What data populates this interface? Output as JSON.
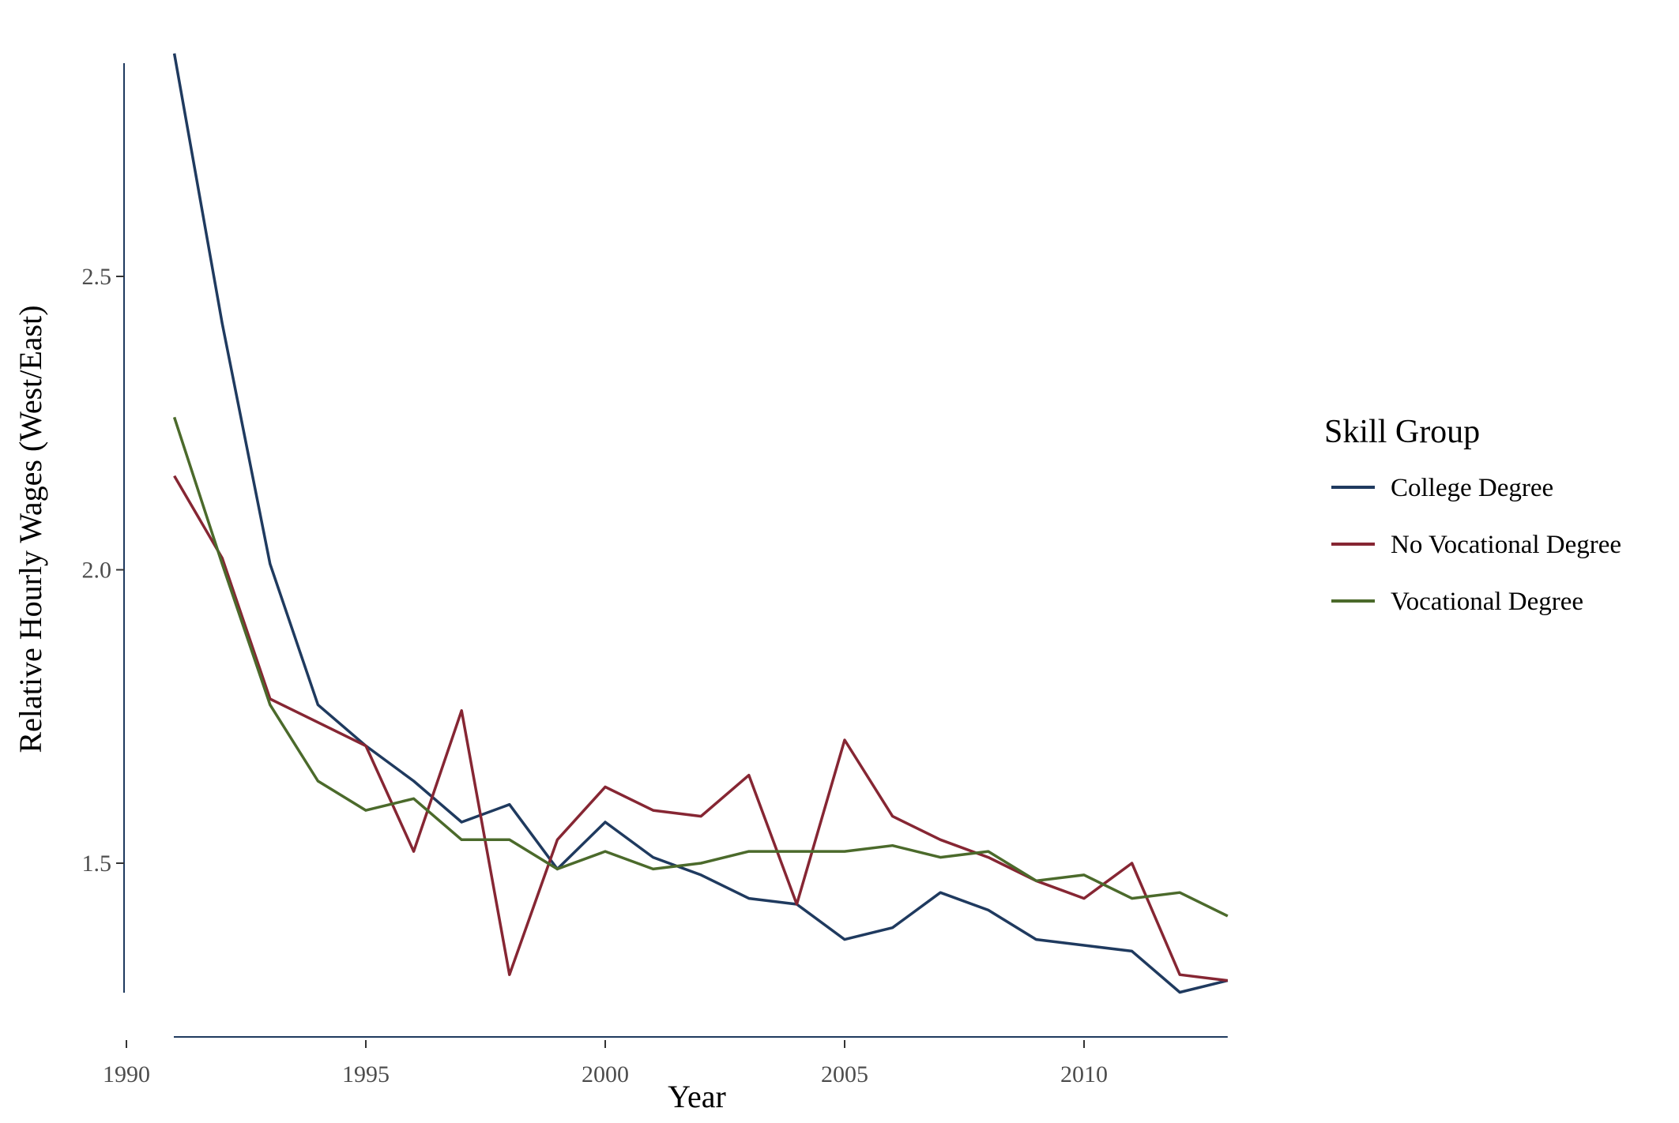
{
  "chart_data": {
    "type": "line",
    "title": "",
    "xlabel": "Year",
    "ylabel": "Relative Hourly Wages (West/East)",
    "xlim": [
      1990,
      2013
    ],
    "ylim": [
      1.2,
      2.85
    ],
    "xticks": [
      1990,
      1995,
      2000,
      2005,
      2010
    ],
    "yticks": [
      1.5,
      2.0,
      2.5
    ],
    "ytick_labels": [
      "1.5",
      "2.0",
      "2.5"
    ],
    "grid": false,
    "legend": {
      "title": "Skill Group",
      "position": "right"
    },
    "x": [
      1991,
      1992,
      1993,
      1994,
      1995,
      1996,
      1997,
      1998,
      1999,
      2000,
      2001,
      2002,
      2003,
      2004,
      2005,
      2006,
      2007,
      2008,
      2009,
      2010,
      2011,
      2012,
      2013
    ],
    "series": [
      {
        "name": "College Degree",
        "color": "#1f3a5f",
        "values": [
          2.88,
          2.42,
          2.01,
          1.77,
          1.7,
          1.64,
          1.57,
          1.6,
          1.49,
          1.57,
          1.51,
          1.48,
          1.44,
          1.43,
          1.37,
          1.39,
          1.45,
          1.42,
          1.37,
          1.36,
          1.35,
          1.28,
          1.3
        ]
      },
      {
        "name": "No Vocational Degree",
        "color": "#862633",
        "values": [
          2.16,
          2.02,
          1.78,
          1.74,
          1.7,
          1.52,
          1.76,
          1.31,
          1.54,
          1.63,
          1.59,
          1.58,
          1.65,
          1.43,
          1.71,
          1.58,
          1.54,
          1.51,
          1.47,
          1.44,
          1.5,
          1.31,
          1.3
        ]
      },
      {
        "name": "Vocational Degree",
        "color": "#4b6a2b",
        "values": [
          2.26,
          2.01,
          1.77,
          1.64,
          1.59,
          1.61,
          1.54,
          1.54,
          1.49,
          1.52,
          1.49,
          1.5,
          1.52,
          1.52,
          1.52,
          1.53,
          1.51,
          1.52,
          1.47,
          1.48,
          1.44,
          1.45,
          1.41
        ]
      }
    ]
  }
}
